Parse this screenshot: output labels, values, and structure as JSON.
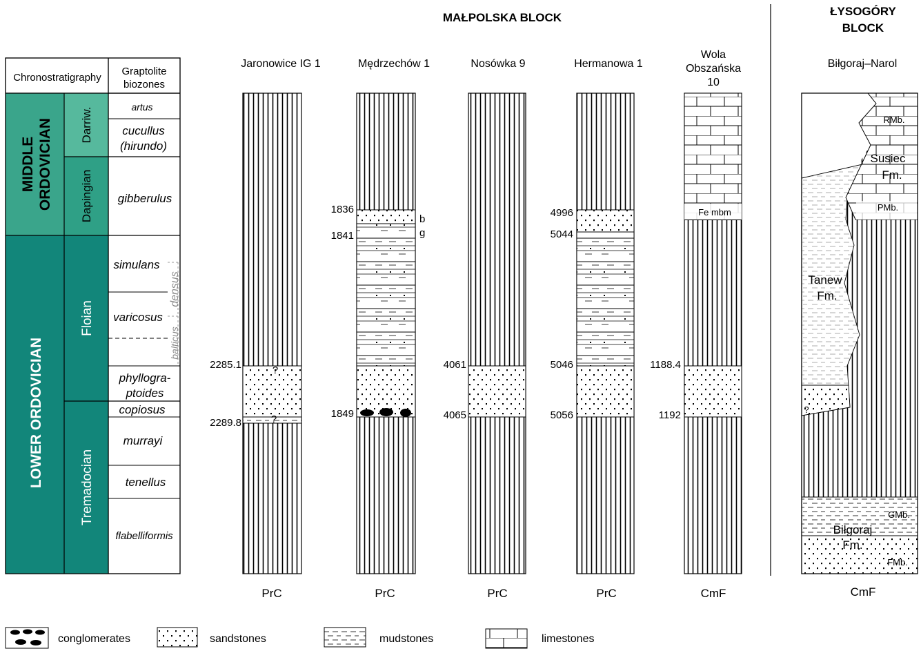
{
  "header": {
    "malopolska": "MAŁPOLSKA  BLOCK",
    "lysogory_1": "ŁYSOGÓRY",
    "lysogory_2": "BLOCK"
  },
  "chrono": {
    "chronostratigraphy_label": "Chronostratigraphy",
    "graptolite_1": "Graptolite",
    "graptolite_2": "biozones",
    "middle_1": "MIDDLE",
    "middle_2": "ORDOVICIAN",
    "lower": "LOWER ORDOVICIAN",
    "stages": {
      "darriw": "Darriw.",
      "dapingian": "Dapingian",
      "floian": "Floian",
      "tremadocian": "Tremadocian"
    },
    "zones": {
      "artus": "artus",
      "cucullus": "cucullus",
      "hirundo": "(hirundo)",
      "gibberulus": "gibberulus",
      "simulans": "simulans",
      "varicosus": "varicosus",
      "densus": "densus",
      "balticus": "balticus",
      "phyllo_1": "phyllogra-",
      "phyllo_2": "ptoides",
      "copiosus": "copiosus",
      "murrayi": "murrayi",
      "tenellus": "tenellus",
      "flabelliformis": "flabelliformis"
    }
  },
  "wells": {
    "jaronowice": {
      "name": "Jaronowice IG 1",
      "top": "2285.1",
      "bottom": "2289.8",
      "q": "?",
      "base": "PrC"
    },
    "medrzechow": {
      "name": "Mędrzechów 1",
      "d1": "1836",
      "d2": "1841",
      "d3": "1849",
      "b": "b",
      "g": "g",
      "base": "PrC"
    },
    "nosowka": {
      "name": "Nosówka 9",
      "top": "4061",
      "bottom": "4065",
      "base": "PrC"
    },
    "hermanowa": {
      "name": "Hermanowa 1",
      "d1": "4996",
      "d2": "5044",
      "d3": "5046",
      "d4": "5056",
      "base": "PrC"
    },
    "wola": {
      "name_1": "Wola",
      "name_2": "Obszańska",
      "name_3": "10",
      "fe": "Fe mbm",
      "top": "1188.4",
      "bottom": "1192",
      "base": "CmF"
    },
    "bilgoraj": {
      "name": "Biłgoraj–Narol",
      "rmb": "RMb.",
      "susiec_1": "Susiec",
      "susiec_2": "Fm.",
      "pmb": "PMb.",
      "tanew_1": "Tanew",
      "tanew_2": "Fm.",
      "q": "?",
      "gmb": "GMb.",
      "bilgoraj_1": "Biłgoraj",
      "bilgoraj_2": "Fm.",
      "fmb": "FMb.",
      "base": "CmF"
    }
  },
  "legend": {
    "conglomerates": "conglomerates",
    "sandstones": "sandstones",
    "mudstones": "mudstones",
    "limestones": "limestones"
  },
  "colors": {
    "middle": "#3aa58b",
    "lower": "#12867a",
    "stage_light": "#56b99d",
    "stage_mid": "#2fa086"
  }
}
